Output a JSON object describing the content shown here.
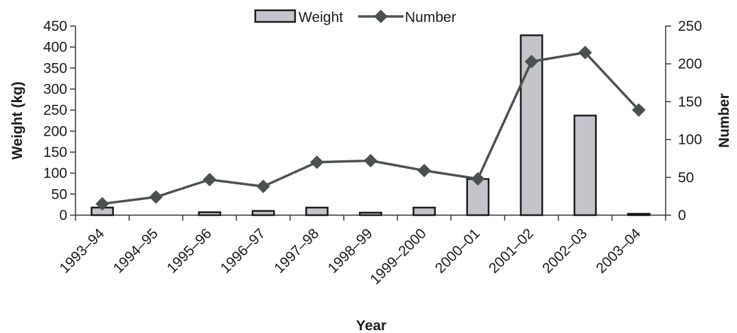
{
  "chart_data": {
    "type": "bar",
    "categories": [
      "1993–94",
      "1994–95",
      "1995–96",
      "1996–97",
      "1997–98",
      "1998–99",
      "1999–2000",
      "2000–01",
      "2001–02",
      "2002–03",
      "2003–04"
    ],
    "series": [
      {
        "name": "Weight",
        "type": "bar",
        "axis": "left",
        "values": [
          18,
          0,
          7,
          10,
          18,
          6,
          18,
          86,
          428,
          237,
          2
        ]
      },
      {
        "name": "Number",
        "type": "line",
        "axis": "right",
        "values": [
          15,
          24,
          47,
          38,
          70,
          72,
          59,
          48,
          203,
          215,
          139
        ]
      }
    ],
    "xlabel": "Year",
    "ylabel": "Weight (kg)",
    "y2label": "Number",
    "ylim": [
      0,
      450
    ],
    "y2lim": [
      0,
      250
    ],
    "yticks": [
      0,
      50,
      100,
      150,
      200,
      250,
      300,
      350,
      400,
      450
    ],
    "y2ticks": [
      0,
      50,
      100,
      150,
      200,
      250
    ],
    "grid": false,
    "legend_position": "top-center",
    "colors": {
      "bar_fill": "#c3c5cb",
      "bar_stroke": "#1a1a1a",
      "line": "#4a5150",
      "marker": "#4a5150",
      "axis": "#333333"
    }
  }
}
